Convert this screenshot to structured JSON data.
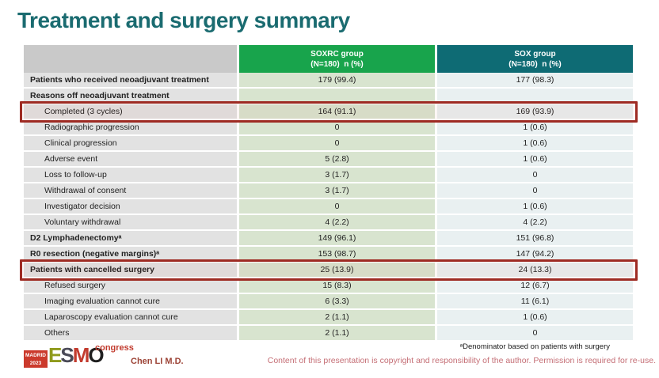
{
  "slide": {
    "title": "Treatment and surgery summary"
  },
  "table": {
    "columns": [
      {
        "name": "",
        "sub": ""
      },
      {
        "name": "SOXRC group",
        "sub": "(N=180)  n (%)"
      },
      {
        "name": "SOX group",
        "sub": "(N=180)  n (%)"
      }
    ],
    "rows": [
      {
        "label": "Patients who received neoadjuvant treatment",
        "soxrc": "179 (99.4)",
        "sox": "177 (98.3)"
      },
      {
        "label": "Reasons off neoadjuvant treatment",
        "soxrc": "",
        "sox": ""
      },
      {
        "label": "Completed (3 cycles)",
        "soxrc": "164 (91.1)",
        "sox": "169 (93.9)"
      },
      {
        "label": "Radiographic progression",
        "soxrc": "0",
        "sox": "1 (0.6)"
      },
      {
        "label": "Clinical progression",
        "soxrc": "0",
        "sox": "1 (0.6)"
      },
      {
        "label": "Adverse event",
        "soxrc": "5 (2.8)",
        "sox": "1 (0.6)"
      },
      {
        "label": "Loss to follow-up",
        "soxrc": "3 (1.7)",
        "sox": "0"
      },
      {
        "label": "Withdrawal of consent",
        "soxrc": "3 (1.7)",
        "sox": "0"
      },
      {
        "label": "Investigator decision",
        "soxrc": "0",
        "sox": "1 (0.6)"
      },
      {
        "label": "Voluntary withdrawal",
        "soxrc": "4 (2.2)",
        "sox": "4 (2.2)"
      },
      {
        "label": "D2 Lymphadenectomyᵃ",
        "soxrc": "149 (96.1)",
        "sox": "151 (96.8)"
      },
      {
        "label": "R0 resection (negative margins)ᵃ",
        "soxrc": "153 (98.7)",
        "sox": "147 (94.2)"
      },
      {
        "label": "Patients with cancelled surgery",
        "soxrc": "25 (13.9)",
        "sox": "24 (13.3)"
      },
      {
        "label": "Refused surgery",
        "soxrc": "15 (8.3)",
        "sox": "12 (6.7)"
      },
      {
        "label": "Imaging evaluation cannot cure",
        "soxrc": "6 (3.3)",
        "sox": "11 (6.1)"
      },
      {
        "label": "Laparoscopy evaluation cannot cure",
        "soxrc": "2 (1.1)",
        "sox": "1 (0.6)"
      },
      {
        "label": "Others",
        "soxrc": "2 (1.1)",
        "sox": "0"
      }
    ],
    "highlighted_rows": [
      "Completed (3 cycles)",
      "Patients with cancelled surgery"
    ]
  },
  "footer": {
    "logo": {
      "madrid": "MADRID 2023",
      "esmo": [
        "E",
        "S",
        "M",
        "O"
      ],
      "congress": "congress"
    },
    "presenter": "Chen LI M.D.",
    "footnote": "ᵃDenominator based on patients with surgery",
    "copyright": "Content of this presentation is copyright and responsibility of the author. Permission is required for re-use."
  },
  "colors": {
    "title": "#1A6B70",
    "soxrc_header": "#18A44C",
    "sox_header": "#0E6B74",
    "label_header": "#C9C9C9",
    "label_cell": "#E2E2E2",
    "soxrc_cell": "#D8E4CF",
    "sox_cell": "#E9F0F1",
    "highlight_border": "#9E2B23",
    "copyright_text": "#C56F76",
    "presenter_text": "#9C4336"
  }
}
